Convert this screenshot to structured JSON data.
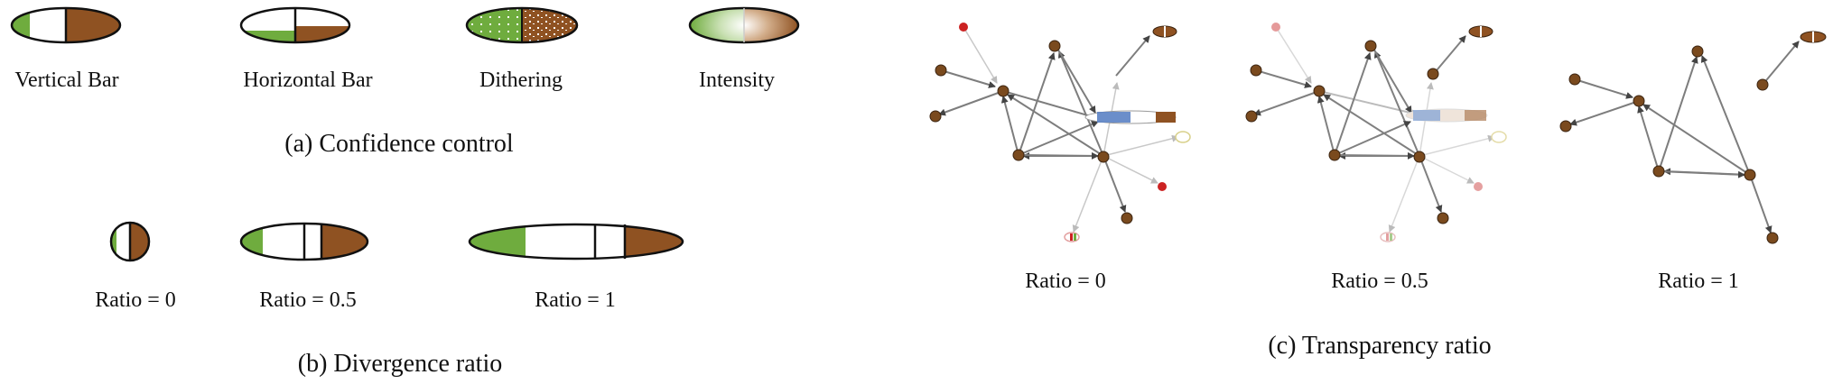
{
  "panel_a": {
    "caption": "(a)  Confidence control",
    "glyphs": [
      {
        "label": "Vertical Bar"
      },
      {
        "label": "Horizontal Bar"
      },
      {
        "label": "Dithering"
      },
      {
        "label": "Intensity"
      }
    ]
  },
  "panel_b": {
    "caption": "(b)  Divergence ratio",
    "glyphs": [
      {
        "label": "Ratio = 0"
      },
      {
        "label": "Ratio = 0.5"
      },
      {
        "label": "Ratio = 1"
      }
    ]
  },
  "panel_c": {
    "caption": "(c)  Transparency ratio",
    "graphs": [
      {
        "label": "Ratio = 0"
      },
      {
        "label": "Ratio = 0.5"
      },
      {
        "label": "Ratio = 1"
      }
    ]
  },
  "colors": {
    "green": "#6fac3e",
    "brown": "#8f5222",
    "node": "#7a4a1e",
    "red": "#cc2222",
    "blue": "#5b82c4",
    "edge": "#7d7d7d"
  }
}
